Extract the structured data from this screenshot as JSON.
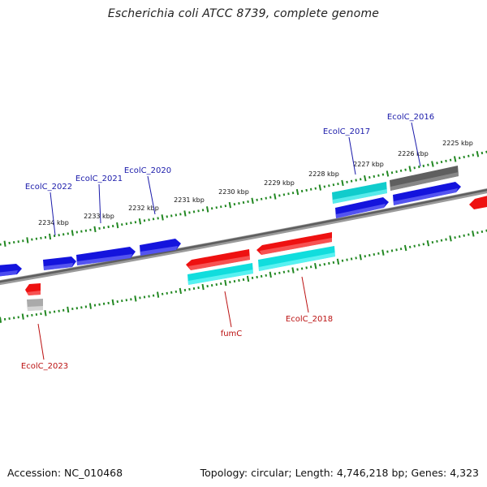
{
  "title": "Escherichia coli ATCC 8739, complete genome",
  "footer": {
    "accession": "Accession: NC_010468",
    "summary": "Topology: circular; Length: 4,746,218 bp; Genes: 4,323"
  },
  "colors": {
    "backbone": "#777777",
    "scale_ticks": "#228822",
    "label_top": "#1a1aaa",
    "label_bottom": "#bb1111",
    "gene_blue": "#1414dd",
    "gene_red": "#ee1111",
    "gene_cyan": "#11dddd",
    "gene_gray": "#666666",
    "gene_lightgray": "#aaaaaa"
  },
  "scale": {
    "unit": "kbp",
    "ticks": [
      {
        "kbp": 2225,
        "label": "2225 kbp"
      },
      {
        "kbp": 2226,
        "label": "2226 kbp"
      },
      {
        "kbp": 2227,
        "label": "2227 kbp"
      },
      {
        "kbp": 2228,
        "label": "2228 kbp"
      },
      {
        "kbp": 2229,
        "label": "2229 kbp"
      },
      {
        "kbp": 2230,
        "label": "2230 kbp"
      },
      {
        "kbp": 2231,
        "label": "2231 kbp"
      },
      {
        "kbp": 2232,
        "label": "2232 kbp"
      },
      {
        "kbp": 2233,
        "label": "2233 kbp"
      },
      {
        "kbp": 2234,
        "label": "2234 kbp"
      }
    ]
  },
  "gene_labels": [
    {
      "name": "EcolC_2016",
      "side": "top"
    },
    {
      "name": "EcolC_2017",
      "side": "top"
    },
    {
      "name": "EcolC_2020",
      "side": "top"
    },
    {
      "name": "EcolC_2021",
      "side": "top"
    },
    {
      "name": "EcolC_2022",
      "side": "top"
    },
    {
      "name": "fumC",
      "side": "bottom"
    },
    {
      "name": "EcolC_2018",
      "side": "bottom"
    },
    {
      "name": "EcolC_2023",
      "side": "bottom"
    }
  ]
}
